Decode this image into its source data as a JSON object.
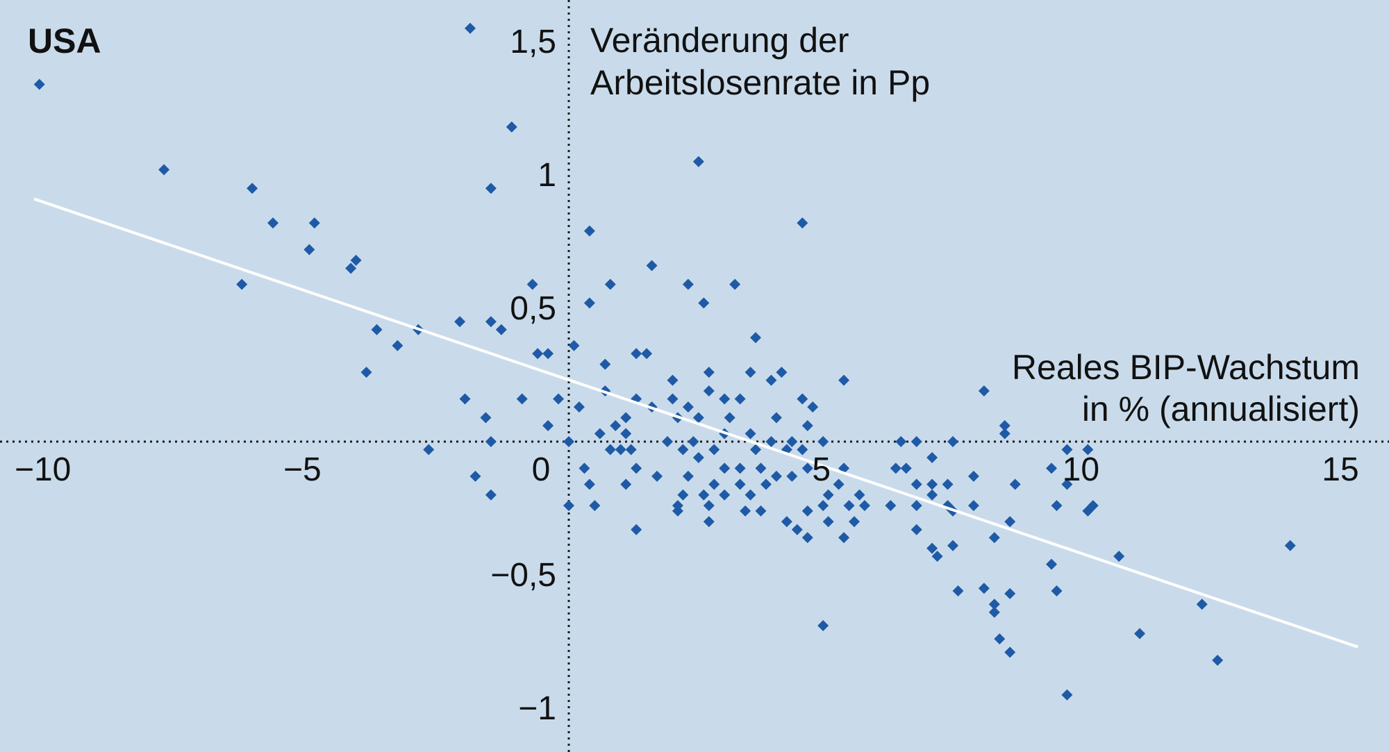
{
  "chart_data": {
    "type": "scatter",
    "title": "USA",
    "ylabel": [
      "Veränderung der",
      "Arbeitslosenrate in Pp"
    ],
    "xlabel": [
      "Reales BIP-Wachstum",
      "in % (annualisiert)"
    ],
    "xlim": [
      -10.5,
      15.5
    ],
    "ylim": [
      -1.12,
      1.65
    ],
    "x_ticks": [
      {
        "value": -10,
        "label": "−10"
      },
      {
        "value": -5,
        "label": "−5"
      },
      {
        "value": 0,
        "label": "0"
      },
      {
        "value": 5,
        "label": "5"
      },
      {
        "value": 10,
        "label": "10"
      },
      {
        "value": 15,
        "label": "15"
      }
    ],
    "y_ticks": [
      {
        "value": 1.5,
        "label": "1,5"
      },
      {
        "value": 1,
        "label": "1"
      },
      {
        "value": 0.5,
        "label": "0,5"
      },
      {
        "value": -0.5,
        "label": "−0,5"
      },
      {
        "value": -1,
        "label": "−1"
      }
    ],
    "grid": false,
    "zero_lines": "dotted",
    "marker": "diamond",
    "colors": {
      "background": "#c9dbeb",
      "points": "#1f5aa6",
      "trend": "#ffffff",
      "axes": "#1a1a1a"
    },
    "trendline": {
      "x": [
        -10.3,
        15.2
      ],
      "y": [
        0.91,
        -0.77
      ]
    },
    "points": [
      {
        "x": -10.2,
        "y": 1.34
      },
      {
        "x": -1.9,
        "y": 1.55
      },
      {
        "x": -1.1,
        "y": 1.18
      },
      {
        "x": -1.5,
        "y": 0.95
      },
      {
        "x": -7.8,
        "y": 1.02
      },
      {
        "x": -6.1,
        "y": 0.95
      },
      {
        "x": -5.7,
        "y": 0.82
      },
      {
        "x": -4.9,
        "y": 0.82
      },
      {
        "x": -5.0,
        "y": 0.72
      },
      {
        "x": -4.1,
        "y": 0.68
      },
      {
        "x": -4.2,
        "y": 0.65
      },
      {
        "x": -6.3,
        "y": 0.59
      },
      {
        "x": -3.7,
        "y": 0.42
      },
      {
        "x": -2.9,
        "y": 0.42
      },
      {
        "x": -3.3,
        "y": 0.36
      },
      {
        "x": -3.9,
        "y": 0.26
      },
      {
        "x": -2.0,
        "y": 0.16
      },
      {
        "x": -1.6,
        "y": 0.09
      },
      {
        "x": -1.5,
        "y": 0.0
      },
      {
        "x": -1.8,
        "y": -0.13
      },
      {
        "x": -1.5,
        "y": -0.2
      },
      {
        "x": -2.7,
        "y": -0.03
      },
      {
        "x": -2.1,
        "y": 0.45
      },
      {
        "x": -1.5,
        "y": 0.45
      },
      {
        "x": -1.3,
        "y": 0.42
      },
      {
        "x": -0.7,
        "y": 0.59
      },
      {
        "x": -0.6,
        "y": 0.33
      },
      {
        "x": -0.4,
        "y": 0.33
      },
      {
        "x": -0.9,
        "y": 0.16
      },
      {
        "x": -0.2,
        "y": 0.16
      },
      {
        "x": -0.4,
        "y": 0.06
      },
      {
        "x": 0.1,
        "y": 0.36
      },
      {
        "x": 0.0,
        "y": -0.24
      },
      {
        "x": 0.4,
        "y": 0.79
      },
      {
        "x": 0.4,
        "y": 0.52
      },
      {
        "x": 0.8,
        "y": 0.59
      },
      {
        "x": 0.7,
        "y": 0.29
      },
      {
        "x": 1.6,
        "y": 0.66
      },
      {
        "x": 2.3,
        "y": 0.59
      },
      {
        "x": 2.6,
        "y": 0.52
      },
      {
        "x": 3.2,
        "y": 0.59
      },
      {
        "x": 2.5,
        "y": 1.05
      },
      {
        "x": 4.5,
        "y": 0.82
      },
      {
        "x": 3.6,
        "y": 0.39
      },
      {
        "x": 1.3,
        "y": 0.33
      },
      {
        "x": 1.5,
        "y": 0.33
      },
      {
        "x": 2.0,
        "y": 0.23
      },
      {
        "x": 2.7,
        "y": 0.26
      },
      {
        "x": 3.5,
        "y": 0.26
      },
      {
        "x": 4.1,
        "y": 0.26
      },
      {
        "x": 3.9,
        "y": 0.23
      },
      {
        "x": 5.3,
        "y": 0.23
      },
      {
        "x": 0.7,
        "y": 0.19
      },
      {
        "x": 1.3,
        "y": 0.16
      },
      {
        "x": 1.6,
        "y": 0.13
      },
      {
        "x": 2.0,
        "y": 0.16
      },
      {
        "x": 2.3,
        "y": 0.13
      },
      {
        "x": 2.7,
        "y": 0.19
      },
      {
        "x": 3.0,
        "y": 0.16
      },
      {
        "x": 3.3,
        "y": 0.16
      },
      {
        "x": 4.5,
        "y": 0.16
      },
      {
        "x": 4.7,
        "y": 0.13
      },
      {
        "x": 0.2,
        "y": 0.13
      },
      {
        "x": 1.1,
        "y": 0.09
      },
      {
        "x": 1.1,
        "y": 0.03
      },
      {
        "x": 0.6,
        "y": 0.03
      },
      {
        "x": 0.9,
        "y": 0.06
      },
      {
        "x": 2.1,
        "y": 0.09
      },
      {
        "x": 2.5,
        "y": 0.09
      },
      {
        "x": 3.1,
        "y": 0.09
      },
      {
        "x": 4.0,
        "y": 0.09
      },
      {
        "x": 4.6,
        "y": 0.06
      },
      {
        "x": 1.9,
        "y": 0.0
      },
      {
        "x": 2.4,
        "y": 0.0
      },
      {
        "x": 3.0,
        "y": 0.03
      },
      {
        "x": 3.5,
        "y": 0.03
      },
      {
        "x": 3.9,
        "y": 0.0
      },
      {
        "x": 4.3,
        "y": 0.0
      },
      {
        "x": 4.9,
        "y": 0.0
      },
      {
        "x": 0.0,
        "y": 0.0
      },
      {
        "x": 0.8,
        "y": -0.03
      },
      {
        "x": 1.0,
        "y": -0.03
      },
      {
        "x": 1.2,
        "y": -0.03
      },
      {
        "x": 2.2,
        "y": -0.03
      },
      {
        "x": 2.8,
        "y": -0.03
      },
      {
        "x": 3.6,
        "y": -0.03
      },
      {
        "x": 4.2,
        "y": -0.03
      },
      {
        "x": 4.5,
        "y": -0.03
      },
      {
        "x": 1.3,
        "y": -0.1
      },
      {
        "x": 2.5,
        "y": -0.06
      },
      {
        "x": 3.0,
        "y": -0.1
      },
      {
        "x": 3.3,
        "y": -0.1
      },
      {
        "x": 3.7,
        "y": -0.1
      },
      {
        "x": 4.0,
        "y": -0.13
      },
      {
        "x": 4.6,
        "y": -0.1
      },
      {
        "x": 5.3,
        "y": -0.1
      },
      {
        "x": 1.7,
        "y": -0.13
      },
      {
        "x": 2.3,
        "y": -0.13
      },
      {
        "x": 2.8,
        "y": -0.16
      },
      {
        "x": 3.3,
        "y": -0.16
      },
      {
        "x": 3.8,
        "y": -0.16
      },
      {
        "x": 4.3,
        "y": -0.13
      },
      {
        "x": 5.2,
        "y": -0.16
      },
      {
        "x": 0.3,
        "y": -0.1
      },
      {
        "x": 0.4,
        "y": -0.16
      },
      {
        "x": 1.1,
        "y": -0.16
      },
      {
        "x": 2.2,
        "y": -0.2
      },
      {
        "x": 2.6,
        "y": -0.2
      },
      {
        "x": 3.0,
        "y": -0.2
      },
      {
        "x": 3.5,
        "y": -0.2
      },
      {
        "x": 5.0,
        "y": -0.2
      },
      {
        "x": 5.6,
        "y": -0.2
      },
      {
        "x": 0.5,
        "y": -0.24
      },
      {
        "x": 2.1,
        "y": -0.24
      },
      {
        "x": 2.7,
        "y": -0.24
      },
      {
        "x": 3.4,
        "y": -0.26
      },
      {
        "x": 3.7,
        "y": -0.26
      },
      {
        "x": 4.9,
        "y": -0.24
      },
      {
        "x": 5.4,
        "y": -0.24
      },
      {
        "x": 5.7,
        "y": -0.24
      },
      {
        "x": 2.1,
        "y": -0.26
      },
      {
        "x": 4.6,
        "y": -0.26
      },
      {
        "x": 5.0,
        "y": -0.3
      },
      {
        "x": 5.5,
        "y": -0.3
      },
      {
        "x": 4.2,
        "y": -0.3
      },
      {
        "x": 2.7,
        "y": -0.3
      },
      {
        "x": 4.4,
        "y": -0.33
      },
      {
        "x": 4.6,
        "y": -0.36
      },
      {
        "x": 5.3,
        "y": -0.36
      },
      {
        "x": 1.3,
        "y": -0.33
      },
      {
        "x": 4.9,
        "y": -0.69
      },
      {
        "x": 6.4,
        "y": 0.0
      },
      {
        "x": 6.7,
        "y": 0.0
      },
      {
        "x": 7.4,
        "y": 0.0
      },
      {
        "x": 6.3,
        "y": -0.1
      },
      {
        "x": 6.5,
        "y": -0.1
      },
      {
        "x": 7.0,
        "y": -0.06
      },
      {
        "x": 6.7,
        "y": -0.16
      },
      {
        "x": 7.0,
        "y": -0.16
      },
      {
        "x": 7.3,
        "y": -0.16
      },
      {
        "x": 7.0,
        "y": -0.2
      },
      {
        "x": 6.2,
        "y": -0.24
      },
      {
        "x": 6.7,
        "y": -0.24
      },
      {
        "x": 7.3,
        "y": -0.24
      },
      {
        "x": 7.4,
        "y": -0.26
      },
      {
        "x": 7.8,
        "y": -0.24
      },
      {
        "x": 7.8,
        "y": -0.13
      },
      {
        "x": 6.7,
        "y": -0.33
      },
      {
        "x": 7.0,
        "y": -0.4
      },
      {
        "x": 7.4,
        "y": -0.39
      },
      {
        "x": 7.1,
        "y": -0.43
      },
      {
        "x": 8.2,
        "y": -0.36
      },
      {
        "x": 7.5,
        "y": -0.56
      },
      {
        "x": 8.0,
        "y": -0.55
      },
      {
        "x": 8.5,
        "y": -0.3
      },
      {
        "x": 8.5,
        "y": -0.57
      },
      {
        "x": 8.2,
        "y": -0.61
      },
      {
        "x": 8.2,
        "y": -0.64
      },
      {
        "x": 8.3,
        "y": -0.74
      },
      {
        "x": 8.5,
        "y": -0.79
      },
      {
        "x": 8.0,
        "y": 0.19
      },
      {
        "x": 8.4,
        "y": 0.06
      },
      {
        "x": 8.4,
        "y": 0.03
      },
      {
        "x": 8.6,
        "y": -0.16
      },
      {
        "x": 9.3,
        "y": -0.1
      },
      {
        "x": 9.6,
        "y": -0.16
      },
      {
        "x": 9.4,
        "y": -0.24
      },
      {
        "x": 9.6,
        "y": -0.03
      },
      {
        "x": 10.0,
        "y": -0.03
      },
      {
        "x": 10.0,
        "y": -0.26
      },
      {
        "x": 10.1,
        "y": -0.24
      },
      {
        "x": 9.3,
        "y": -0.46
      },
      {
        "x": 9.4,
        "y": -0.56
      },
      {
        "x": 10.6,
        "y": -0.43
      },
      {
        "x": 11.0,
        "y": -0.72
      },
      {
        "x": 9.6,
        "y": -0.95
      },
      {
        "x": 12.2,
        "y": -0.61
      },
      {
        "x": 12.5,
        "y": -0.82
      },
      {
        "x": 13.9,
        "y": -0.39
      }
    ]
  }
}
